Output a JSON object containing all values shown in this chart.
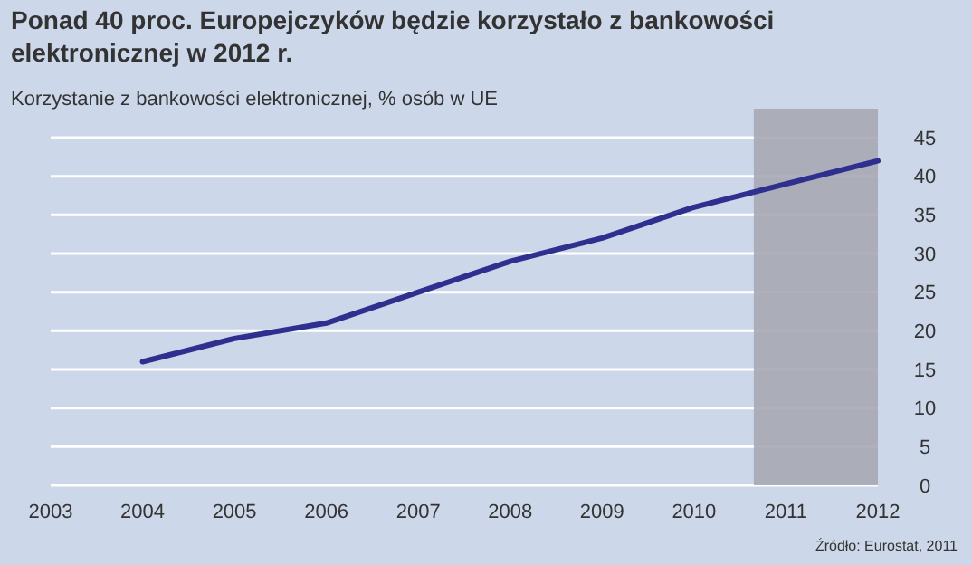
{
  "chart_data": {
    "type": "line",
    "title": "Ponad 40 proc. Europejczyków będzie korzystało z bankowości elektronicznej w 2012 r.",
    "ylabel": "Korzystanie z bankowości elektronicznej, % osób w UE",
    "x": [
      2004,
      2005,
      2006,
      2007,
      2008,
      2009,
      2010,
      2011,
      2012
    ],
    "series": [
      {
        "color": "#2e2f8e",
        "values": [
          16,
          19,
          21,
          25,
          29,
          32,
          36,
          39,
          42
        ]
      }
    ],
    "xlim": [
      2003,
      2012
    ],
    "xticks": [
      2003,
      2004,
      2005,
      2006,
      2007,
      2008,
      2009,
      2010,
      2011,
      2012
    ],
    "ylim": [
      0,
      45
    ],
    "yticks": [
      0,
      5,
      10,
      15,
      20,
      25,
      30,
      35,
      40,
      45
    ],
    "grid": "y",
    "marker": "none",
    "line_style": "solid",
    "bands": [
      {
        "axis": "x",
        "from": 2010.65,
        "to": 2012,
        "color": "#a7a9b4"
      }
    ],
    "annotations": [
      "Źródło: Eurostat, 2011"
    ]
  }
}
